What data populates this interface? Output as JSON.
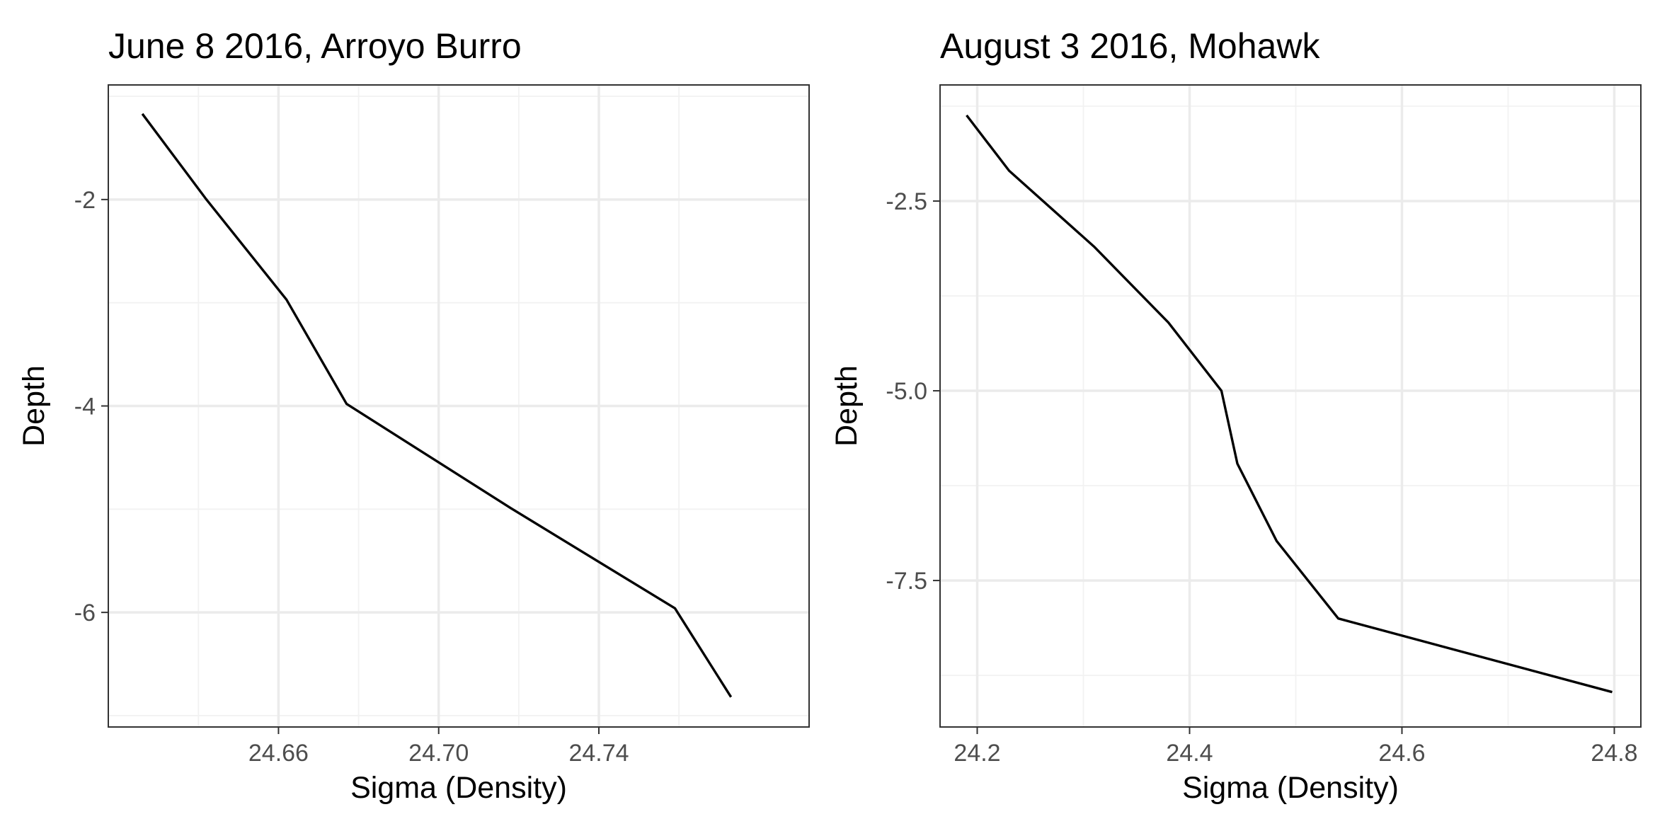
{
  "chart_data": [
    {
      "type": "line",
      "title": "June 8 2016, Arroyo Burro",
      "xlabel": "Sigma (Density)",
      "ylabel": "Depth",
      "xlim": [
        24.6175,
        24.7925
      ],
      "ylim": [
        -7.11,
        -0.89
      ],
      "x_ticks": [
        24.66,
        24.7,
        24.74
      ],
      "x_tick_labels": [
        "24.66",
        "24.70",
        "24.74"
      ],
      "y_ticks": [
        -2,
        -4,
        -6
      ],
      "y_tick_labels": [
        "-2",
        "-4",
        "-6"
      ],
      "grid": true,
      "series": [
        {
          "x": [
            24.626,
            24.642,
            24.662,
            24.677,
            24.718,
            24.759,
            24.773
          ],
          "y": [
            -1.17,
            -2.0,
            -2.97,
            -3.98,
            -4.99,
            -5.96,
            -6.82
          ]
        }
      ]
    },
    {
      "type": "line",
      "title": "August 3 2016, Mohawk",
      "xlabel": "Sigma (Density)",
      "ylabel": "Depth",
      "xlim": [
        24.165,
        24.825
      ],
      "ylim": [
        -9.43,
        -0.97
      ],
      "x_ticks": [
        24.2,
        24.4,
        24.6,
        24.8
      ],
      "x_tick_labels": [
        "24.2",
        "24.4",
        "24.6",
        "24.8"
      ],
      "y_ticks": [
        -2.5,
        -5.0,
        -7.5
      ],
      "y_tick_labels": [
        "-2.5",
        "-5.0",
        "-7.5"
      ],
      "grid": true,
      "series": [
        {
          "x": [
            24.19,
            24.23,
            24.31,
            24.38,
            24.43,
            24.445,
            24.482,
            24.54,
            24.798
          ],
          "y": [
            -1.37,
            -2.1,
            -3.1,
            -4.1,
            -5.0,
            -5.96,
            -6.98,
            -8.0,
            -8.97
          ]
        }
      ]
    }
  ]
}
